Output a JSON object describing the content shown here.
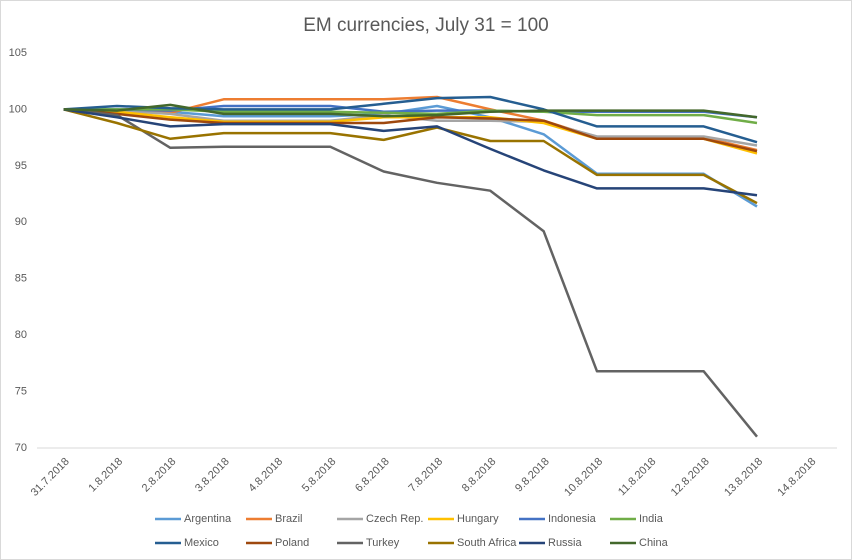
{
  "chart_data": {
    "type": "line",
    "title": "EM currencies, July 31 = 100",
    "categories": [
      "31.7.2018",
      "1.8.2018",
      "2.8.2018",
      "3.8.2018",
      "4.8.2018",
      "5.8.2018",
      "6.8.2018",
      "7.8.2018",
      "8.8.2018",
      "9.8.2018",
      "10.8.2018",
      "11.8.2018",
      "12.8.2018",
      "13.8.2018",
      "14.8.2018"
    ],
    "ylim": [
      70,
      105
    ],
    "yticks": [
      70,
      75,
      80,
      85,
      90,
      95,
      100,
      105
    ],
    "grid": false,
    "legend": "bottom",
    "series": [
      {
        "name": "Argentina",
        "color": "#5B9BD5",
        "values": [
          100,
          99.7,
          99.8,
          99.4,
          99.4,
          99.4,
          99.6,
          100.3,
          99.3,
          97.8,
          94.3,
          94.3,
          94.3,
          91.4,
          null
        ]
      },
      {
        "name": "Brazil",
        "color": "#ED7D31",
        "values": [
          100,
          99.8,
          99.7,
          100.9,
          100.9,
          100.9,
          100.9,
          101.1,
          100.0,
          99.0,
          97.5,
          97.5,
          97.5,
          96.4,
          null
        ]
      },
      {
        "name": "Czech Rep.",
        "color": "#A5A5A5",
        "values": [
          100,
          99.9,
          99.6,
          99.0,
          99.0,
          99.0,
          99.5,
          99.0,
          99.0,
          98.9,
          97.6,
          97.6,
          97.6,
          96.8,
          null
        ]
      },
      {
        "name": "Hungary",
        "color": "#FFC000",
        "values": [
          100,
          99.8,
          99.3,
          98.9,
          98.9,
          98.9,
          99.3,
          99.3,
          99.3,
          98.8,
          97.4,
          97.4,
          97.4,
          96.1,
          null
        ]
      },
      {
        "name": "Indonesia",
        "color": "#4472C4",
        "values": [
          100,
          100.0,
          99.9,
          100.3,
          100.3,
          100.3,
          99.8,
          99.9,
          99.9,
          99.8,
          99.8,
          99.8,
          99.8,
          99.3,
          null
        ]
      },
      {
        "name": "India",
        "color": "#70AD47",
        "values": [
          100,
          100.0,
          100.0,
          99.8,
          99.8,
          99.8,
          99.7,
          99.6,
          99.9,
          99.8,
          99.5,
          99.5,
          99.5,
          98.8,
          null
        ]
      },
      {
        "name": "Mexico",
        "color": "#255E91",
        "values": [
          100,
          100.3,
          100.1,
          100.0,
          100.0,
          100.0,
          100.5,
          101.0,
          101.1,
          100.0,
          98.5,
          98.5,
          98.5,
          97.1,
          null
        ]
      },
      {
        "name": "Poland",
        "color": "#9E480E",
        "values": [
          100,
          99.6,
          99.1,
          98.8,
          98.8,
          98.8,
          98.8,
          99.3,
          99.2,
          99.0,
          97.4,
          97.4,
          97.4,
          96.3,
          null
        ]
      },
      {
        "name": "Turkey",
        "color": "#636363",
        "values": [
          100,
          99.5,
          96.6,
          96.7,
          96.7,
          96.7,
          94.5,
          93.5,
          92.8,
          89.2,
          76.8,
          76.8,
          76.8,
          71.0,
          null
        ]
      },
      {
        "name": "South Africa",
        "color": "#997300",
        "values": [
          100,
          98.8,
          97.4,
          97.9,
          97.9,
          97.9,
          97.3,
          98.4,
          97.2,
          97.2,
          94.2,
          94.2,
          94.2,
          91.7,
          null
        ]
      },
      {
        "name": "Russia",
        "color": "#264478",
        "values": [
          100,
          99.3,
          98.5,
          98.7,
          98.7,
          98.7,
          98.1,
          98.5,
          96.5,
          94.6,
          93.0,
          93.0,
          93.0,
          92.4,
          null
        ]
      },
      {
        "name": "China",
        "color": "#43682B",
        "values": [
          100,
          99.9,
          100.4,
          99.6,
          99.6,
          99.6,
          99.4,
          99.5,
          99.8,
          99.9,
          99.9,
          99.9,
          99.9,
          99.3,
          null
        ]
      }
    ]
  }
}
